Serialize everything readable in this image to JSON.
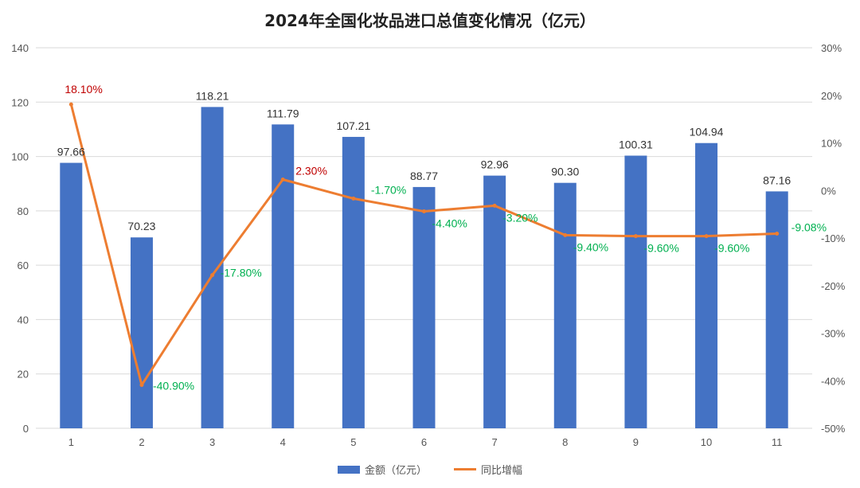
{
  "title": "2024年全国化妆品进口总值变化情况（亿元）",
  "colors": {
    "bar": "#4472C4",
    "line": "#ED7D31",
    "positive": "#C00000",
    "negative": "#00B050",
    "grid": "#D9D9D9"
  },
  "legend": {
    "bar_label": "金额（亿元）",
    "line_label": "同比增幅",
    "placement": "bottom"
  },
  "chart_data": {
    "type": "bar",
    "categories": [
      "1",
      "2",
      "3",
      "4",
      "5",
      "6",
      "7",
      "8",
      "9",
      "10",
      "11"
    ],
    "series": [
      {
        "name": "金额（亿元）",
        "type": "bar",
        "axis": "left",
        "values": [
          97.66,
          70.23,
          118.21,
          111.79,
          107.21,
          88.77,
          92.96,
          90.3,
          100.31,
          104.94,
          87.16
        ],
        "labels": [
          "97.66",
          "70.23",
          "118.21",
          "111.79",
          "107.21",
          "88.77",
          "92.96",
          "90.30",
          "100.31",
          "104.94",
          "87.16"
        ]
      },
      {
        "name": "同比增幅",
        "type": "line",
        "axis": "right",
        "values": [
          18.1,
          -40.9,
          -17.8,
          2.3,
          -1.7,
          -4.4,
          -3.2,
          -9.4,
          -9.6,
          -9.6,
          -9.08
        ],
        "labels": [
          "18.10%",
          "-40.90%",
          "-17.80%",
          "2.30%",
          "-1.70%",
          "-4.40%",
          "-3.20%",
          "-9.40%",
          "-9.60%",
          "-9.60%",
          "-9.08%"
        ]
      }
    ],
    "y_left": {
      "min": 0,
      "max": 140,
      "ticks": [
        "0",
        "20",
        "40",
        "60",
        "80",
        "100",
        "120",
        "140"
      ]
    },
    "y_right": {
      "min": -50,
      "max": 30,
      "ticks": [
        "-50%",
        "-40%",
        "-30%",
        "-20%",
        "-10%",
        "0%",
        "10%",
        "20%",
        "30%"
      ]
    },
    "grid": true
  }
}
